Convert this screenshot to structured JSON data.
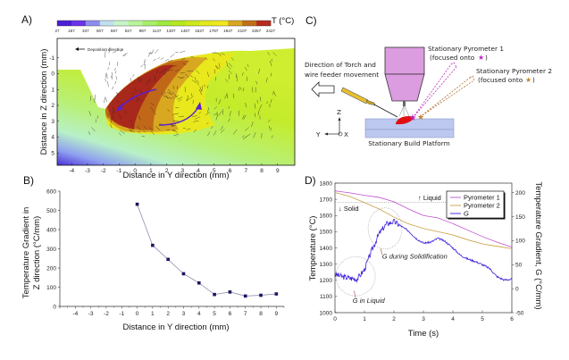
{
  "panels": {
    "A": {
      "label": "A)"
    },
    "B": {
      "label": "B)"
    },
    "C": {
      "label": "C)"
    },
    "D": {
      "label": "D)"
    }
  },
  "chart_data": [
    {
      "id": "A",
      "type": "heatmap",
      "title": "",
      "xlabel": "Distance in Y direction (mm)",
      "ylabel": "Distance in Z direction (mm)",
      "xticks": [
        "-4",
        "-3",
        "-2",
        "-1",
        "0",
        "1",
        "2",
        "3",
        "4",
        "5",
        "6",
        "7",
        "8",
        "9"
      ],
      "yticks": [
        "-1",
        "0",
        "1",
        "2",
        "3",
        "4",
        "5"
      ],
      "xlim": [
        -5,
        10
      ],
      "ylim": [
        -2,
        6
      ],
      "annotation": "Deposition direction",
      "colorbar": {
        "label": "T (°C)",
        "ticks": [
          "27",
          "187",
          "347",
          "507",
          "667",
          "827",
          "987",
          "1147",
          "1307",
          "1467",
          "1627",
          "1787",
          "1947",
          "2107",
          "2267",
          "2427"
        ],
        "colors": [
          "#4a1fd6",
          "#6a33e8",
          "#8f8cf0",
          "#bfe0f0",
          "#c8f5c8",
          "#b8f59a",
          "#a6ef6a",
          "#9fe83e",
          "#b5e81e",
          "#cde81a",
          "#e2ea1c",
          "#f0e81e",
          "#d8a820",
          "#c07018",
          "#b82a1e"
        ]
      }
    },
    {
      "id": "B",
      "type": "line",
      "title": "",
      "xlabel": "Distance in Y direction (mm)",
      "ylabel": "Temperature Gradient in Z direction (°C/mm)",
      "xticks": [
        "-4",
        "-3",
        "-2",
        "-1",
        "0",
        "1",
        "2",
        "3",
        "4",
        "5",
        "6",
        "7",
        "8",
        "9"
      ],
      "yticks": [
        "0",
        "100",
        "200",
        "300",
        "400",
        "500",
        "600"
      ],
      "xlim": [
        -5,
        9.5
      ],
      "ylim": [
        0,
        600
      ],
      "x": [
        0,
        1,
        2,
        3,
        4,
        5,
        6,
        7,
        8,
        9
      ],
      "series": [
        {
          "name": "G",
          "values": [
            532,
            318,
            245,
            170,
            122,
            62,
            75,
            54,
            58,
            65
          ],
          "color": "#1a1560"
        }
      ]
    },
    {
      "id": "D",
      "type": "line",
      "title": "",
      "xlabel": "Time (s)",
      "ylabel": "Temperature (°C)",
      "y2label": "Temperature Gradient, G (°C/mm)",
      "xticks": [
        "0",
        "1",
        "2",
        "3",
        "4",
        "5",
        "6"
      ],
      "yticks": [
        "1000",
        "1100",
        "1200",
        "1300",
        "1400",
        "1500",
        "1600",
        "1700",
        "1800"
      ],
      "y2ticks": [
        "-50",
        "0",
        "50",
        "100",
        "150",
        "200"
      ],
      "xlim": [
        0,
        6
      ],
      "ylim": [
        1000,
        1800
      ],
      "y2lim": [
        -50,
        220
      ],
      "legend_position": "top-right",
      "reference_line": {
        "y": 1680,
        "above_label": "Liquid",
        "below_label": "Solid"
      },
      "annotations": [
        "G during Solidification",
        "G in Liquid"
      ],
      "series": [
        {
          "name": "Pyrometer 1",
          "axis": "left",
          "color": "#c04fd0",
          "x": [
            0,
            0.5,
            1,
            1.5,
            2,
            2.5,
            3,
            3.5,
            4,
            4.5,
            5,
            5.5,
            6
          ],
          "values": [
            1752,
            1740,
            1725,
            1712,
            1685,
            1640,
            1600,
            1585,
            1550,
            1510,
            1470,
            1435,
            1405
          ]
        },
        {
          "name": "Pyrometer 2",
          "axis": "left",
          "color": "#c8a040",
          "x": [
            0,
            0.5,
            1,
            1.5,
            2,
            2.5,
            3,
            3.5,
            4,
            4.5,
            5,
            5.5,
            6
          ],
          "values": [
            1742,
            1718,
            1680,
            1640,
            1590,
            1548,
            1520,
            1500,
            1480,
            1450,
            1425,
            1410,
            1395
          ]
        },
        {
          "name": "G",
          "axis": "right",
          "color": "#3a1ad8",
          "x": [
            0,
            0.25,
            0.5,
            0.75,
            1,
            1.25,
            1.5,
            1.75,
            2,
            2.25,
            2.5,
            2.75,
            3,
            3.25,
            3.5,
            3.75,
            4,
            4.25,
            4.5,
            4.75,
            5,
            5.25,
            5.5,
            5.75,
            6
          ],
          "values": [
            30,
            25,
            22,
            20,
            40,
            80,
            115,
            135,
            140,
            130,
            120,
            105,
            95,
            97,
            105,
            98,
            85,
            70,
            62,
            57,
            50,
            42,
            25,
            18,
            20
          ]
        }
      ]
    }
  ],
  "diagram": {
    "direction_label_line1": "Direction of Torch and",
    "direction_label_line2": "wire feeder movement",
    "pyrometer1_line1": "Stationary Pyrometer 1",
    "pyrometer1_line2": "(focused onto",
    "pyrometer2_line1": "Stationary Pyrometer 2",
    "pyrometer2_line2": "(focused onto",
    "platform_label": "Stationary Build Platform",
    "axis_z": "Z",
    "axis_y": "Y",
    "axis_x": "X",
    "star1_color": "#c020c0",
    "star2_color": "#c08030"
  }
}
